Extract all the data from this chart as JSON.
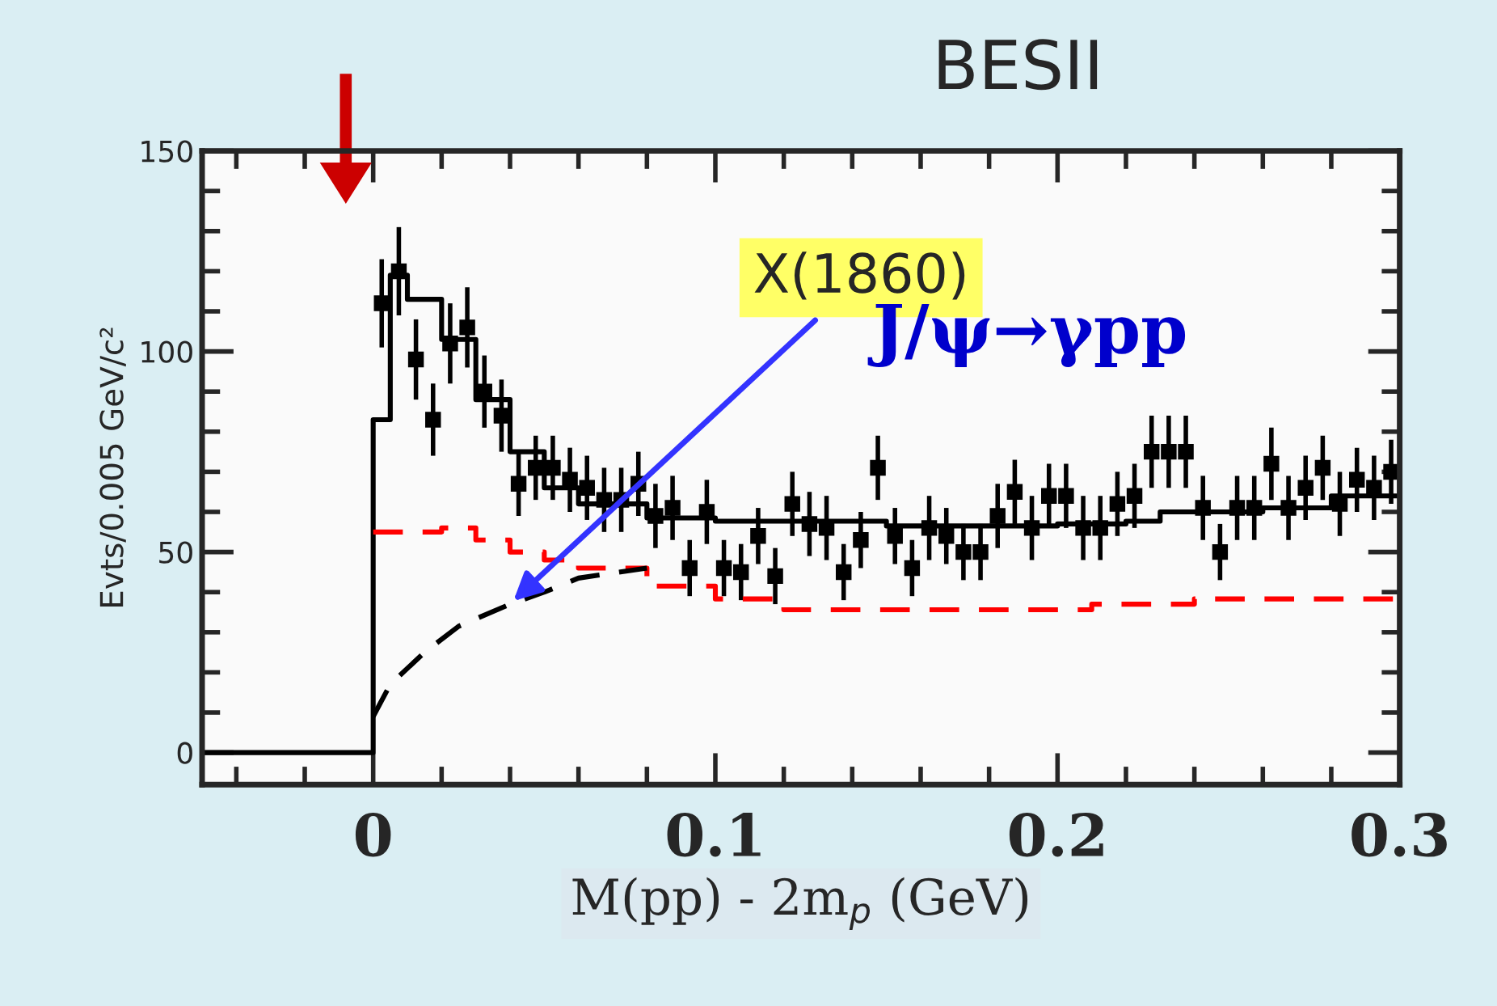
{
  "chart_data": {
    "type": "scatter",
    "title": "BESII",
    "xlabel": "M(pp) - 2m$_{p}$ (GeV)",
    "ylabel": "Evts/0.005 GeV/c²",
    "annotations": [
      {
        "text": "X(1860)",
        "x": 0.04,
        "y": 37
      },
      "J/ψ→γpp"
    ],
    "xlim": [
      -0.05,
      0.3
    ],
    "ylim": [
      -8,
      150
    ],
    "xticks": [
      0,
      0.1,
      0.2,
      0.3
    ],
    "yticks": [
      0,
      50,
      100,
      150
    ],
    "grid": false,
    "legend": false,
    "series": [
      {
        "color": "#000000",
        "marker": "square",
        "x": [
          0.0025,
          0.0075,
          0.0125,
          0.0175,
          0.0225,
          0.0275,
          0.0325,
          0.0375,
          0.0425,
          0.0475,
          0.0525,
          0.0575,
          0.0625,
          0.0675,
          0.0725,
          0.0775,
          0.0825,
          0.0875,
          0.0925,
          0.0975,
          0.1025,
          0.1075,
          0.1125,
          0.1175,
          0.1225,
          0.1275,
          0.1325,
          0.1375,
          0.1425,
          0.1475,
          0.1525,
          0.1575,
          0.1625,
          0.1675,
          0.1725,
          0.1775,
          0.1825,
          0.1875,
          0.1925,
          0.1975,
          0.2025,
          0.2075,
          0.2125,
          0.2175,
          0.2225,
          0.2275,
          0.2325,
          0.2375,
          0.2425,
          0.2475,
          0.2525,
          0.2575,
          0.2625,
          0.2675,
          0.2725,
          0.2775,
          0.2825,
          0.2875,
          0.2925,
          0.2975
        ],
        "values": [
          112,
          120,
          98,
          83,
          102,
          106,
          90,
          84,
          67,
          71,
          71,
          68,
          66,
          63,
          63,
          67,
          59,
          61,
          46,
          60,
          46,
          45,
          54,
          44,
          62,
          57,
          56,
          45,
          53,
          71,
          54,
          46,
          56,
          54,
          50,
          50,
          59,
          65,
          56,
          64,
          64,
          56,
          56,
          62,
          64,
          75,
          75,
          75,
          61,
          50,
          61,
          61,
          72,
          61,
          66,
          71,
          62,
          68,
          66,
          70
        ],
        "errors": [
          11,
          11,
          10,
          9,
          10,
          10,
          9,
          9,
          8,
          8,
          8,
          8,
          8,
          8,
          8,
          8,
          8,
          8,
          7,
          8,
          7,
          7,
          7,
          7,
          8,
          8,
          8,
          7,
          7,
          8,
          7,
          7,
          8,
          7,
          7,
          7,
          8,
          8,
          8,
          8,
          8,
          8,
          8,
          8,
          8,
          9,
          9,
          9,
          8,
          7,
          8,
          8,
          9,
          8,
          8,
          8,
          8,
          8,
          8,
          8
        ]
      },
      {
        "type": "step",
        "color": "#000000",
        "line_style": "solid",
        "x": [
          -0.05,
          0,
          0,
          0.005,
          0.01,
          0.02,
          0.03,
          0.04,
          0.05,
          0.06,
          0.08,
          0.1,
          0.15,
          0.2,
          0.22,
          0.23,
          0.26,
          0.28,
          0.3
        ],
        "values": [
          0,
          0,
          83,
          119,
          113,
          103,
          88,
          75,
          66,
          62,
          58.5,
          57.7,
          56.5,
          57,
          57.7,
          60,
          61,
          64,
          68
        ]
      },
      {
        "type": "step",
        "color": "#ff0000",
        "line_style": "dashed",
        "x": [
          0,
          0.02,
          0.03,
          0.04,
          0.05,
          0.06,
          0.08,
          0.1,
          0.12,
          0.2,
          0.21,
          0.24,
          0.3
        ],
        "values": [
          55,
          56,
          53,
          50,
          48,
          46,
          41.5,
          38.3,
          35.6,
          35.6,
          37,
          38.3,
          38.3
        ]
      },
      {
        "type": "line",
        "color": "#000000",
        "line_style": "dashed",
        "x": [
          0,
          0.005,
          0.015,
          0.025,
          0.04,
          0.05,
          0.06,
          0.08
        ],
        "values": [
          9,
          17,
          25,
          31.5,
          37,
          40,
          43.5,
          46
        ]
      }
    ]
  }
}
